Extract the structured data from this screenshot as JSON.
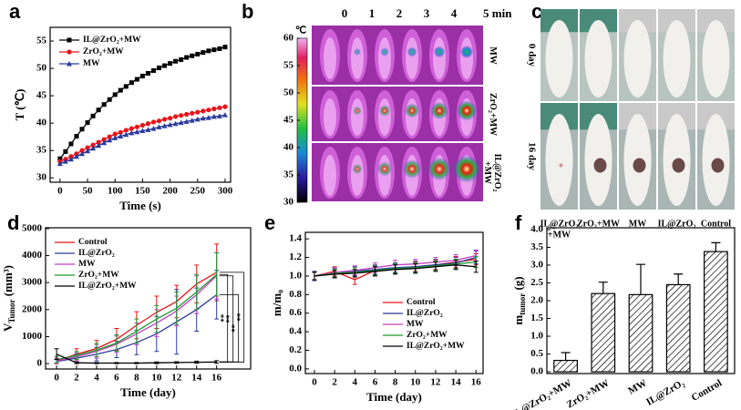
{
  "panel_labels": [
    "a",
    "b",
    "c",
    "d",
    "e",
    "f"
  ],
  "thermal_images": {
    "temperature_unit": "℃",
    "scale_lim": [
      30,
      60
    ],
    "scale_ticks": [
      30,
      35,
      40,
      45,
      50,
      55,
      60
    ],
    "time_labels": [
      "0",
      "1",
      "2",
      "3",
      "4",
      "5 min"
    ],
    "rows": [
      [
        "MW"
      ],
      [
        "ZrO₂+MW"
      ],
      [
        "IL@ZrO₂",
        "+MW"
      ]
    ]
  },
  "photos": {
    "rows": [
      "0 day",
      "16 day"
    ],
    "columns": [
      [
        "IL@ZrO₂",
        "+MW"
      ],
      [
        "ZrO₂+MW"
      ],
      [
        "MW"
      ],
      [
        "IL@ZrO₂"
      ],
      [
        "Control"
      ]
    ]
  },
  "chart_data": [
    {
      "type": "line",
      "x_label": "Time (s)",
      "y_label": "T (℃)",
      "legend": "upper left",
      "x": [
        0,
        10,
        20,
        30,
        40,
        50,
        60,
        70,
        80,
        90,
        100,
        110,
        120,
        130,
        140,
        150,
        160,
        170,
        180,
        190,
        200,
        210,
        220,
        230,
        240,
        250,
        260,
        270,
        280,
        290,
        300
      ],
      "xlim": [
        -18,
        310
      ],
      "ylim": [
        29.2,
        57.5
      ],
      "xticks": [
        0,
        50,
        100,
        150,
        200,
        250,
        300
      ],
      "yticks": [
        30,
        35,
        40,
        45,
        50,
        55
      ],
      "series": [
        {
          "name": "IL@ZrO₂+MW",
          "color": "#000000",
          "marker": "square",
          "values": [
            33.5,
            34.8,
            36.2,
            37.6,
            38.9,
            40.1,
            41.3,
            42.4,
            43.4,
            44.3,
            45.2,
            46.0,
            46.7,
            47.4,
            48.0,
            48.6,
            49.1,
            49.6,
            50.1,
            50.5,
            50.9,
            51.3,
            51.6,
            52.0,
            52.3,
            52.6,
            52.9,
            53.2,
            53.4,
            53.6,
            53.9
          ]
        },
        {
          "name": "ZrO₂+MW",
          "color": "#e8141b",
          "marker": "circle",
          "values": [
            33.0,
            33.4,
            33.9,
            34.4,
            35.0,
            35.5,
            36.0,
            36.5,
            37.0,
            37.5,
            38.0,
            38.3,
            38.7,
            39.0,
            39.3,
            39.6,
            39.9,
            40.2,
            40.4,
            40.7,
            40.9,
            41.2,
            41.4,
            41.6,
            41.8,
            42.0,
            42.2,
            42.4,
            42.6,
            42.8,
            43.0
          ]
        },
        {
          "name": "MW",
          "color": "#2b3a9a",
          "marker": "triangle",
          "values": [
            32.6,
            33.0,
            33.4,
            33.9,
            34.4,
            34.9,
            35.4,
            35.9,
            36.4,
            36.9,
            37.3,
            37.6,
            37.9,
            38.2,
            38.4,
            38.6,
            38.8,
            39.0,
            39.3,
            39.5,
            39.7,
            39.9,
            40.1,
            40.3,
            40.5,
            40.7,
            40.9,
            41.0,
            41.2,
            41.3,
            41.5
          ]
        }
      ]
    },
    {
      "type": "line",
      "x_label": "Time (day)",
      "y_label": {
        "text": "V",
        "subscript": "Tumor",
        "unit": " (mm³)"
      },
      "legend": "upper left",
      "x": [
        0,
        2,
        4,
        6,
        8,
        10,
        12,
        14,
        16
      ],
      "xlim": [
        -1.1,
        19.4
      ],
      "ylim": [
        -200,
        5030
      ],
      "xticks": [
        0,
        2,
        4,
        6,
        8,
        10,
        12,
        14,
        16
      ],
      "yticks": [
        0,
        1000,
        2000,
        3000,
        4000,
        5000
      ],
      "annotations": [
        "**",
        "**",
        "**",
        "**"
      ],
      "series": [
        {
          "name": "Control",
          "color": "#e8141b",
          "values": [
            100,
            350,
            560,
            900,
            1420,
            1900,
            2300,
            2950,
            3380
          ],
          "errors": [
            100,
            200,
            300,
            400,
            500,
            600,
            600,
            700,
            1050
          ]
        },
        {
          "name": "IL@ZrO₂",
          "color": "#2b3a9a",
          "values": [
            80,
            200,
            350,
            520,
            780,
            1100,
            1550,
            2000,
            2550
          ],
          "errors": [
            80,
            150,
            250,
            300,
            450,
            650,
            1200,
            800,
            900
          ]
        },
        {
          "name": "MW",
          "color": "#c43fc4",
          "values": [
            100,
            250,
            450,
            720,
            1100,
            1500,
            1950,
            2550,
            3250
          ],
          "errors": [
            100,
            150,
            250,
            300,
            400,
            500,
            550,
            700,
            850
          ]
        },
        {
          "name": "ZrO₂+MW",
          "color": "#1f9a2e",
          "values": [
            150,
            300,
            500,
            760,
            1200,
            1650,
            2050,
            2650,
            3300
          ],
          "errors": [
            120,
            150,
            250,
            300,
            450,
            500,
            600,
            650,
            800
          ]
        },
        {
          "name": "IL@ZrO₂+MW",
          "color": "#000000",
          "values": [
            350,
            30,
            20,
            20,
            20,
            30,
            40,
            50,
            60
          ],
          "errors": [
            200,
            30,
            20,
            20,
            20,
            30,
            30,
            40,
            50
          ]
        }
      ]
    },
    {
      "type": "line",
      "x_label": "Time (day)",
      "y_label": "m/m₀",
      "legend": "lower right",
      "x": [
        0,
        2,
        4,
        6,
        8,
        10,
        12,
        14,
        16
      ],
      "xlim": [
        -0.9,
        16.7
      ],
      "ylim": [
        -0.05,
        1.47
      ],
      "xticks": [
        0,
        2,
        4,
        6,
        8,
        10,
        12,
        14,
        16
      ],
      "yticks": [
        {
          "value": 0,
          "label": "0.0"
        },
        0.2,
        0.4,
        0.6,
        0.8,
        {
          "value": 1,
          "label": "1.0"
        },
        1.2,
        1.4
      ],
      "series": [
        {
          "name": "Control",
          "color": "#e8141b",
          "values": [
            1.0,
            1.05,
            0.96,
            1.06,
            1.08,
            1.1,
            1.12,
            1.15,
            1.18
          ],
          "errors": [
            0.05,
            0.05,
            0.05,
            0.05,
            0.05,
            0.05,
            0.05,
            0.06,
            0.06
          ]
        },
        {
          "name": "IL@ZrO₂",
          "color": "#2b3a9a",
          "values": [
            1.0,
            1.03,
            1.05,
            1.07,
            1.09,
            1.1,
            1.12,
            1.14,
            1.2
          ],
          "errors": [
            0.05,
            0.05,
            0.05,
            0.05,
            0.05,
            0.06,
            0.06,
            0.06,
            0.07
          ]
        },
        {
          "name": "MW",
          "color": "#c43fc4",
          "values": [
            1.0,
            1.04,
            1.06,
            1.09,
            1.12,
            1.13,
            1.15,
            1.17,
            1.22
          ],
          "errors": [
            0.04,
            0.05,
            0.05,
            0.05,
            0.05,
            0.05,
            0.05,
            0.06,
            0.06
          ]
        },
        {
          "name": "ZrO₂+MW",
          "color": "#1f9a2e",
          "values": [
            1.0,
            1.03,
            1.04,
            1.06,
            1.08,
            1.09,
            1.11,
            1.13,
            1.15
          ],
          "errors": [
            0.04,
            0.04,
            0.05,
            0.05,
            0.05,
            0.05,
            0.05,
            0.05,
            0.06
          ]
        },
        {
          "name": "IL@ZrO₂+MW",
          "color": "#000000",
          "values": [
            1.0,
            1.02,
            1.03,
            1.05,
            1.07,
            1.08,
            1.1,
            1.12,
            1.1
          ],
          "errors": [
            0.04,
            0.04,
            0.04,
            0.05,
            0.05,
            0.05,
            0.05,
            0.05,
            0.06
          ]
        }
      ]
    },
    {
      "type": "bar",
      "y_label": {
        "text": "m",
        "subscript": "tumor",
        "unit": " (g)"
      },
      "pattern": "hatch",
      "color": "#000000",
      "categories": [
        "IL@ZrO₂+MW",
        "ZrO₂+MW",
        "MW",
        "IL@ZrO₂",
        "Control"
      ],
      "values": [
        0.32,
        2.2,
        2.17,
        2.45,
        3.38
      ],
      "errors": [
        0.22,
        0.32,
        0.85,
        0.3,
        0.25
      ],
      "ylim": [
        -0.05,
        4.05
      ],
      "yticks": [
        {
          "value": 0,
          "label": "0.0"
        },
        0.5,
        {
          "value": 1,
          "label": "1.0"
        },
        1.5,
        {
          "value": 2,
          "label": "2.0"
        },
        2.5,
        {
          "value": 3,
          "label": "3.0"
        },
        3.5,
        {
          "value": 4,
          "label": "4.0"
        }
      ]
    }
  ]
}
